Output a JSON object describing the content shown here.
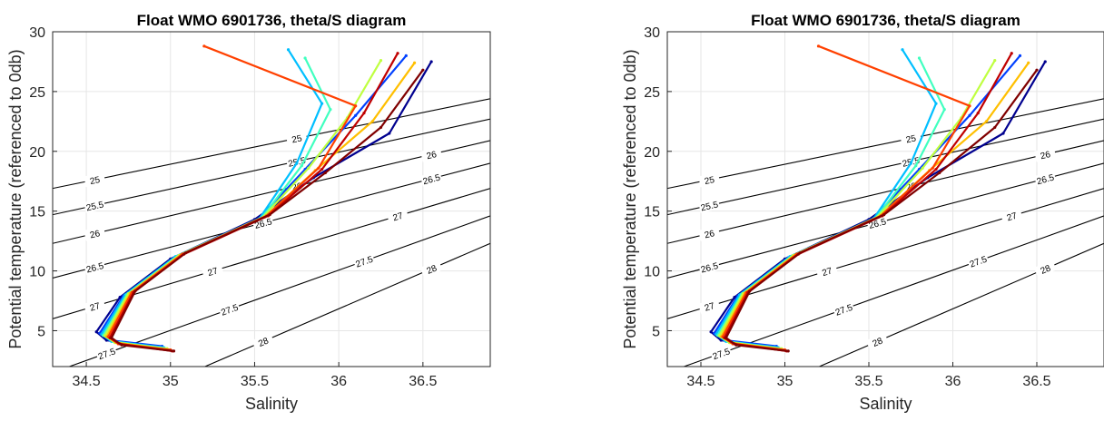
{
  "chart_data": [
    {
      "type": "line",
      "title": "Float WMO 6901736, theta/S diagram",
      "xlabel": "Salinity",
      "ylabel": "Potential temperature (referenced to 0db)",
      "xlim": [
        34.3,
        36.9
      ],
      "ylim": [
        2,
        30
      ],
      "xticks": [
        "34.5",
        "35",
        "35.5",
        "36",
        "36.5"
      ],
      "yticks": [
        "5",
        "10",
        "15",
        "20",
        "25",
        "30"
      ],
      "grid": true,
      "density_contours": [
        "25",
        "25.5",
        "26",
        "26.5",
        "27",
        "27.5",
        "28"
      ],
      "profile_colors": [
        "#00008f",
        "#0040ff",
        "#00bfff",
        "#40ffbf",
        "#bfff40",
        "#ffbf00",
        "#ff4000",
        "#c00000",
        "#800000"
      ],
      "series": [
        {
          "x": [
            34.93,
            34.62,
            34.56,
            34.7,
            35.0,
            35.5,
            35.85,
            36.3,
            36.55
          ],
          "y": [
            3.6,
            4.2,
            4.9,
            7.8,
            11.0,
            14.3,
            17.8,
            21.5,
            27.5
          ]
        },
        {
          "x": [
            34.95,
            34.64,
            34.58,
            34.72,
            35.02,
            35.52,
            35.8,
            36.1,
            36.4
          ],
          "y": [
            3.7,
            4.2,
            4.8,
            7.9,
            11.1,
            14.3,
            18.5,
            23.0,
            28.0
          ]
        },
        {
          "x": [
            34.96,
            34.65,
            34.59,
            34.73,
            35.03,
            35.53,
            35.75,
            35.9,
            35.7
          ],
          "y": [
            3.6,
            4.1,
            4.7,
            8.0,
            11.2,
            14.4,
            19.0,
            24.0,
            28.5
          ]
        },
        {
          "x": [
            34.97,
            34.66,
            34.6,
            34.74,
            35.04,
            35.54,
            35.78,
            35.95,
            35.8
          ],
          "y": [
            3.5,
            4.1,
            4.6,
            8.0,
            11.2,
            14.4,
            18.8,
            23.5,
            27.8
          ]
        },
        {
          "x": [
            34.98,
            34.67,
            34.61,
            34.75,
            35.05,
            35.55,
            35.82,
            36.05,
            36.25
          ],
          "y": [
            3.5,
            4.0,
            4.6,
            8.1,
            11.3,
            14.5,
            18.6,
            22.8,
            27.6
          ]
        },
        {
          "x": [
            34.99,
            34.68,
            34.62,
            34.76,
            35.06,
            35.56,
            35.86,
            36.2,
            36.45
          ],
          "y": [
            3.4,
            4.0,
            4.5,
            8.1,
            11.3,
            14.5,
            18.4,
            22.5,
            27.4
          ]
        },
        {
          "x": [
            35.0,
            34.69,
            34.63,
            34.77,
            35.07,
            35.57,
            35.88,
            36.1,
            35.2
          ],
          "y": [
            3.4,
            3.9,
            4.5,
            8.2,
            11.4,
            14.6,
            18.6,
            23.8,
            28.8
          ]
        },
        {
          "x": [
            35.01,
            34.7,
            34.64,
            34.78,
            35.08,
            35.58,
            35.9,
            36.15,
            36.35
          ],
          "y": [
            3.3,
            3.9,
            4.4,
            8.2,
            11.4,
            14.6,
            18.5,
            23.2,
            28.2
          ]
        },
        {
          "x": [
            35.02,
            34.71,
            34.65,
            34.79,
            35.09,
            35.59,
            35.92,
            36.25,
            36.5
          ],
          "y": [
            3.3,
            3.8,
            4.4,
            8.3,
            11.5,
            14.7,
            18.2,
            22.0,
            26.8
          ]
        }
      ]
    },
    {
      "type": "line",
      "title": "Float WMO 6901736, theta/S diagram",
      "xlabel": "Salinity",
      "ylabel": "Potential temperature (referenced to 0db)",
      "xlim": [
        34.3,
        36.9
      ],
      "ylim": [
        2,
        30
      ],
      "xticks": [
        "34.5",
        "35",
        "35.5",
        "36",
        "36.5"
      ],
      "yticks": [
        "5",
        "10",
        "15",
        "20",
        "25",
        "30"
      ],
      "grid": true,
      "density_contours": [
        "25",
        "25.5",
        "26",
        "26.5",
        "27",
        "27.5",
        "28"
      ],
      "profile_colors": [
        "#00008f",
        "#0040ff",
        "#00bfff",
        "#40ffbf",
        "#bfff40",
        "#ffbf00",
        "#ff4000",
        "#c00000",
        "#800000"
      ],
      "series": [
        {
          "x": [
            34.93,
            34.62,
            34.56,
            34.7,
            35.0,
            35.5,
            35.85,
            36.3,
            36.55
          ],
          "y": [
            3.6,
            4.2,
            4.9,
            7.8,
            11.0,
            14.3,
            17.8,
            21.5,
            27.5
          ]
        },
        {
          "x": [
            34.95,
            34.64,
            34.58,
            34.72,
            35.02,
            35.52,
            35.8,
            36.1,
            36.4
          ],
          "y": [
            3.7,
            4.2,
            4.8,
            7.9,
            11.1,
            14.3,
            18.5,
            23.0,
            28.0
          ]
        },
        {
          "x": [
            34.96,
            34.65,
            34.59,
            34.73,
            35.03,
            35.53,
            35.75,
            35.9,
            35.7
          ],
          "y": [
            3.6,
            4.1,
            4.7,
            8.0,
            11.2,
            14.4,
            19.0,
            24.0,
            28.5
          ]
        },
        {
          "x": [
            34.97,
            34.66,
            34.6,
            34.74,
            35.04,
            35.54,
            35.78,
            35.95,
            35.8
          ],
          "y": [
            3.5,
            4.1,
            4.6,
            8.0,
            11.2,
            14.4,
            18.8,
            23.5,
            27.8
          ]
        },
        {
          "x": [
            34.98,
            34.67,
            34.61,
            34.75,
            35.05,
            35.55,
            35.82,
            36.05,
            36.25
          ],
          "y": [
            3.5,
            4.0,
            4.6,
            8.1,
            11.3,
            14.5,
            18.6,
            22.8,
            27.6
          ]
        },
        {
          "x": [
            34.99,
            34.68,
            34.62,
            34.76,
            35.06,
            35.56,
            35.86,
            36.2,
            36.45
          ],
          "y": [
            3.4,
            4.0,
            4.5,
            8.1,
            11.3,
            14.5,
            18.4,
            22.5,
            27.4
          ]
        },
        {
          "x": [
            35.0,
            34.69,
            34.63,
            34.77,
            35.07,
            35.57,
            35.88,
            36.1,
            35.2
          ],
          "y": [
            3.4,
            3.9,
            4.5,
            8.2,
            11.4,
            14.6,
            18.6,
            23.8,
            28.8
          ]
        },
        {
          "x": [
            35.01,
            34.7,
            34.64,
            34.78,
            35.08,
            35.58,
            35.9,
            36.15,
            36.35
          ],
          "y": [
            3.3,
            3.9,
            4.4,
            8.2,
            11.4,
            14.6,
            18.5,
            23.2,
            28.2
          ]
        },
        {
          "x": [
            35.02,
            34.71,
            34.65,
            34.79,
            35.09,
            35.59,
            35.92,
            36.25,
            36.5
          ],
          "y": [
            3.3,
            3.8,
            4.4,
            8.3,
            11.5,
            14.7,
            18.2,
            22.0,
            26.8
          ]
        }
      ]
    }
  ]
}
